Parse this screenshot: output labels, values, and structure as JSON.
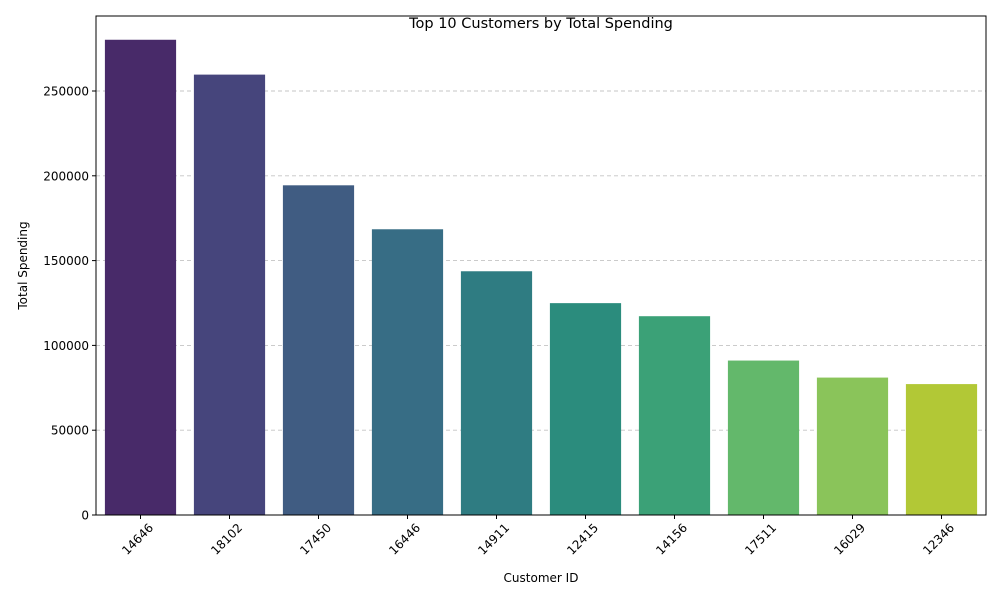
{
  "chart_data": {
    "type": "bar",
    "title": "Top 10 Customers by Total Spending",
    "xlabel": "Customer ID",
    "ylabel": "Total Spending",
    "categories": [
      "14646",
      "18102",
      "17450",
      "16446",
      "14911",
      "12415",
      "14156",
      "17511",
      "16029",
      "12346"
    ],
    "values": [
      280206,
      259657,
      194390,
      168472,
      143711,
      124914,
      117210,
      91062,
      81024,
      77183
    ],
    "ylim": [
      0,
      294216
    ],
    "yticks": [
      0,
      50000,
      100000,
      150000,
      200000,
      250000
    ],
    "ytick_labels": [
      "0",
      "50000",
      "100000",
      "150000",
      "200000",
      "250000"
    ],
    "grid": "y-dashed",
    "colors": [
      "#482a69",
      "#46457c",
      "#405c82",
      "#376d85",
      "#2f7c82",
      "#2b8c7d",
      "#3ba177",
      "#63b86b",
      "#8ac45a",
      "#b2c836"
    ]
  }
}
